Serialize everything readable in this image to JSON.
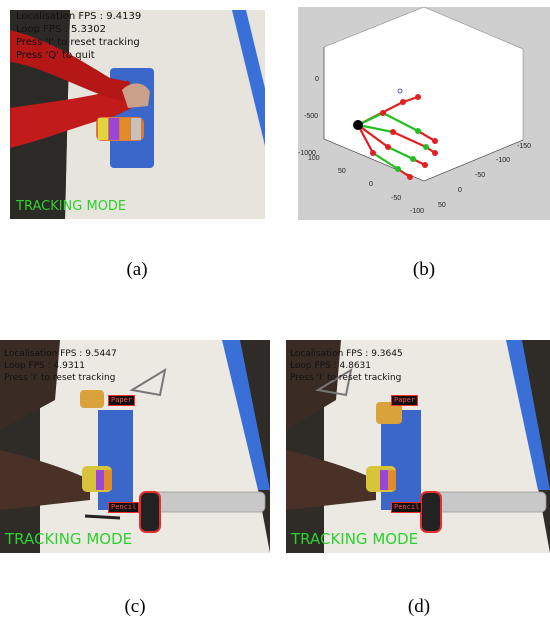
{
  "panel_a": {
    "overlay_lines": [
      "Localisation FPS : 9.4139",
      "Loop FPS : 5.3302",
      "Press 'I' to reset tracking",
      "Press 'Q' to quit"
    ],
    "mode": "TRACKING MODE",
    "caption": "(a)"
  },
  "panel_b": {
    "caption": "(b)",
    "ticks": {
      "vertical": [
        "0",
        "-500",
        "-1000"
      ],
      "left_axis": [
        "100",
        "50",
        "0",
        "-50",
        "-100"
      ],
      "right_axis": [
        "-150",
        "-100",
        "-50",
        "0",
        "50"
      ]
    }
  },
  "panel_c": {
    "overlay_lines": [
      "Localisation FPS : 9.5447",
      "Loop FPS : 4.9311",
      "Press 'I' to reset tracking"
    ],
    "mode": "TRACKING MODE",
    "tags": [
      "Paper",
      "Pencil"
    ],
    "caption": "(c)"
  },
  "panel_d": {
    "overlay_lines": [
      "Localisation FPS : 9.3645",
      "Loop FPS : 4.8631",
      "Press 'I' to reset tracking"
    ],
    "mode": "TRACKING MODE",
    "tags": [
      "Paper",
      "Pencil"
    ],
    "caption": "(d)"
  },
  "colors": {
    "overlay_text": "#111111",
    "mode_text": "#2dd12d",
    "tag_border": "#ff2a2a"
  }
}
